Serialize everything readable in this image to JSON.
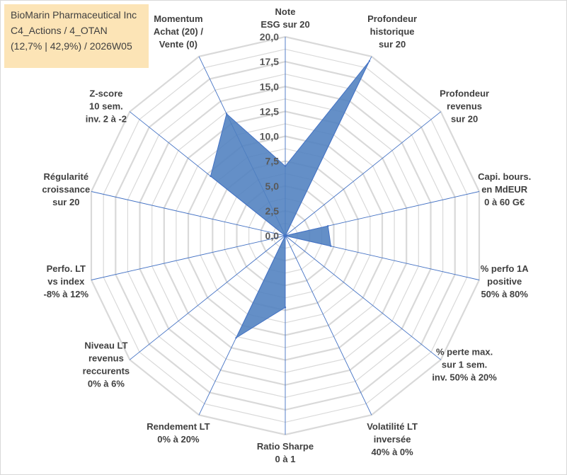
{
  "title_lines": [
    "BioMarin Pharmaceutical Inc",
    "C4_Actions / 4_OTAN",
    "(12,7% | 42,9%) / 2026W05"
  ],
  "colors": {
    "grid": "#d9d9d9",
    "spoke": "#4472c4",
    "fill": "#4f7fbf",
    "title_bg": "#fce4b6",
    "text": "#404040",
    "tick_text": "#595959"
  },
  "chart_data": {
    "type": "radar",
    "rlim": [
      0,
      20
    ],
    "ticks": [
      "0,0",
      "2,5",
      "5,0",
      "7,5",
      "10,0",
      "12,5",
      "15,0",
      "17,5",
      "20,0"
    ],
    "tick_values": [
      0,
      2.5,
      5,
      7.5,
      10,
      12.5,
      15,
      17.5,
      20
    ],
    "minor_step": 1.25,
    "categories": [
      [
        "Note",
        "ESG sur 20"
      ],
      [
        "Profondeur",
        "historique",
        "sur 20"
      ],
      [
        "Profondeur",
        "revenus",
        "sur 20"
      ],
      [
        "Capi. bours.",
        "en MdEUR",
        "0 à 60 G€"
      ],
      [
        "% perfo 1A",
        "positive",
        "50% à 80%"
      ],
      [
        "% perte max.",
        "sur 1 sem.",
        "inv. 50% à 20%"
      ],
      [
        "Volatilité LT",
        "inversée",
        "40% à 0%"
      ],
      [
        "Ratio Sharpe",
        "0 à 1"
      ],
      [
        "Rendement LT",
        "0% à 20%"
      ],
      [
        "Niveau LT",
        "revenus",
        "reccurents",
        "0% à 6%"
      ],
      [
        "Perfo. LT",
        "vs index",
        "-8% à 12%"
      ],
      [
        "Régularité",
        "croissance",
        "sur 20"
      ],
      [
        "Z-score",
        "10 sem.",
        "inv. 2 à -2"
      ],
      [
        "Momentum",
        "Achat (20) /",
        "Vente (0)"
      ]
    ],
    "series": [
      {
        "name": "BioMarin Pharmaceutical Inc",
        "values": [
          7.0,
          19.5,
          0.0,
          4.4,
          4.7,
          0.0,
          0.0,
          7.2,
          11.4,
          0.0,
          0.0,
          0.0,
          9.6,
          13.6
        ]
      }
    ]
  }
}
